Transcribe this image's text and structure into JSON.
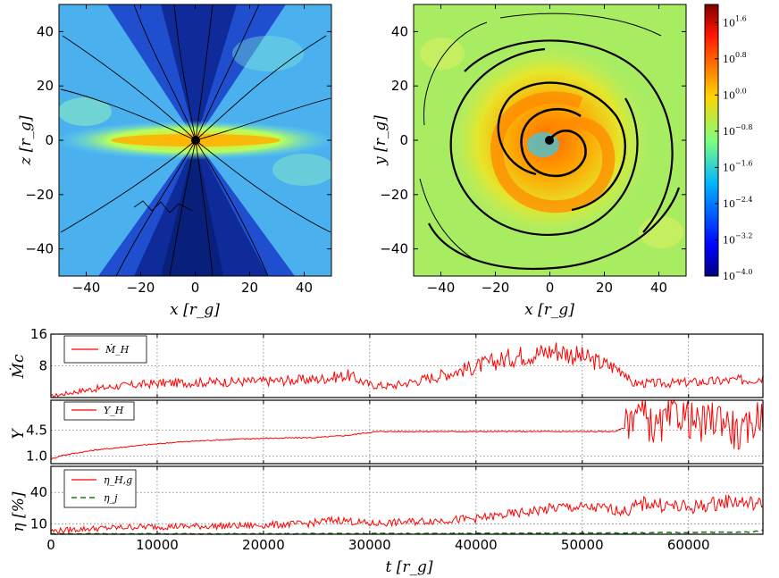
{
  "colors": {
    "red": "#ff0000",
    "green": "#1a7a1a",
    "grid": "#777777"
  },
  "maps": {
    "left": {
      "xlabel": "x [r_g]",
      "ylabel": "z [r_g]",
      "xticks": [
        "−40",
        "−20",
        "0",
        "20",
        "40"
      ],
      "yticks": [
        "40",
        "20",
        "0",
        "−20",
        "−40"
      ],
      "xlim": [
        -50,
        50
      ],
      "ylim": [
        -50,
        50
      ]
    },
    "right": {
      "xlabel": "x [r_g]",
      "ylabel": "y [r_g]",
      "xticks": [
        "−40",
        "−20",
        "0",
        "20",
        "40"
      ],
      "yticks": [
        "40",
        "20",
        "0",
        "−20",
        "−40"
      ],
      "xlim": [
        -50,
        50
      ],
      "ylim": [
        -50,
        50
      ]
    },
    "colorbar": {
      "labels": [
        "10^1.6",
        "10^0.8",
        "10^0.0",
        "10^−0.8",
        "10^−1.6",
        "10^−2.4",
        "10^−3.2",
        "10^−4.0"
      ],
      "exponents": [
        1.6,
        0.8,
        0.0,
        -0.8,
        -1.6,
        -2.4,
        -3.2,
        -4.0
      ],
      "range": [
        -4.0,
        2.0
      ]
    }
  },
  "chart_data": [
    {
      "type": "line",
      "panel": "mdot",
      "ylabel": "Ṁc",
      "yticks": [
        "16",
        "8"
      ],
      "ytick_values": [
        16,
        8
      ],
      "ylim": [
        0,
        16
      ],
      "xlim": [
        0,
        67000
      ],
      "legend": [
        "Ṁ_H"
      ],
      "series": [
        {
          "name": "Ṁ_H",
          "x": [
            0,
            3000,
            6000,
            10000,
            15000,
            20000,
            25000,
            28000,
            30000,
            32000,
            35000,
            38000,
            40000,
            42000,
            44000,
            46000,
            47500,
            50000,
            52000,
            54000,
            54500,
            58000,
            62000,
            66000,
            67000
          ],
          "y": [
            0.3,
            1.8,
            2.8,
            3.6,
            3.9,
            4.1,
            4.6,
            5.6,
            3.2,
            2.9,
            4.5,
            6.5,
            7.8,
            9.2,
            10.6,
            11.2,
            12.0,
            10.2,
            8.5,
            6.8,
            3.6,
            3.6,
            4.0,
            4.6,
            5.2
          ]
        }
      ]
    },
    {
      "type": "line",
      "panel": "upsilon",
      "ylabel": "Υ",
      "yticks": [
        "4.5",
        "1.0"
      ],
      "ytick_values": [
        4.5,
        1.0
      ],
      "ylim": [
        0,
        8.5
      ],
      "xlim": [
        0,
        67000
      ],
      "legend": [
        "Υ_H"
      ],
      "series": [
        {
          "name": "Υ_H",
          "x": [
            0,
            1000,
            4000,
            8000,
            12000,
            16000,
            20000,
            25000,
            28000,
            30000,
            31000,
            35000,
            40000,
            45000,
            50000,
            53000,
            54000,
            55000,
            57000,
            59000,
            61000,
            63000,
            65000,
            67000
          ],
          "y": [
            0.6,
            1.1,
            1.8,
            2.4,
            2.9,
            3.2,
            3.4,
            3.5,
            3.8,
            4.2,
            4.3,
            4.3,
            4.3,
            4.3,
            4.3,
            4.3,
            4.8,
            7.5,
            4.5,
            7.0,
            5.0,
            6.5,
            3.5,
            7.2
          ]
        }
      ]
    },
    {
      "type": "line",
      "panel": "eta",
      "ylabel": "η [%]",
      "yticks": [
        "40",
        "10"
      ],
      "ytick_values": [
        40,
        10
      ],
      "ylim": [
        0,
        65
      ],
      "xlim": [
        0,
        67000
      ],
      "xlabel": "t [r_g]",
      "xticks": [
        "0",
        "10000",
        "20000",
        "30000",
        "40000",
        "50000",
        "60000"
      ],
      "xtick_values": [
        0,
        10000,
        20000,
        30000,
        40000,
        50000,
        60000
      ],
      "legend": [
        "η_H,g",
        "η_j"
      ],
      "series": [
        {
          "name": "η_H,g",
          "x": [
            0,
            3000,
            8000,
            12000,
            18000,
            24000,
            27000,
            30000,
            34000,
            40000,
            44000,
            48000,
            52000,
            54000,
            56000,
            60000,
            64000,
            67000
          ],
          "y": [
            3,
            5,
            7,
            7.5,
            8,
            10,
            14,
            10,
            12,
            15,
            20,
            26,
            25,
            22,
            30,
            25,
            32,
            28
          ]
        },
        {
          "name": "η_j",
          "x": [
            0,
            20000,
            40000,
            54000,
            60000,
            66000,
            67000
          ],
          "y": [
            0.3,
            0.4,
            0.8,
            1.2,
            1.6,
            2.2,
            4.0
          ]
        }
      ]
    }
  ]
}
